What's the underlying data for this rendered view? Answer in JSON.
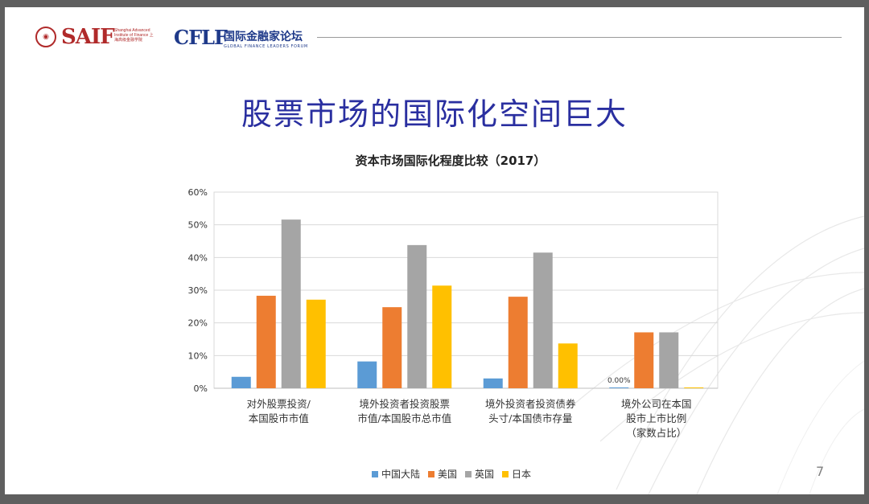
{
  "header": {
    "saif_logo": "SAIF",
    "saif_subtitle": "Shanghai Advanced Institute of Finance 上海高级金融学院",
    "cflf_logo": "CFLF",
    "cflf_name": "国际金融家论坛",
    "cflf_en": "GLOBAL FINANCE LEADERS FORUM"
  },
  "slide_title": "股票市场的国际化空间巨大",
  "page_number": "7",
  "colors": {
    "title": "#2a2fa0",
    "中国大陆": "#5b9bd5",
    "美国": "#ed7d31",
    "英国": "#a5a5a5",
    "日本": "#ffc000"
  },
  "chart_data": {
    "type": "bar",
    "title": "资本市场国际化程度比较（2017）",
    "categories": [
      [
        "对外股票投资/",
        "本国股市市值"
      ],
      [
        "境外投资者投资股票",
        "市值/本国股市总市值"
      ],
      [
        "境外投资者投资债券",
        "头寸/本国债市存量"
      ],
      [
        "境外公司在本国",
        "股市上市比例",
        "（家数占比）"
      ]
    ],
    "series": [
      {
        "name": "中国大陆",
        "color": "#5b9bd5",
        "values": [
          0.035,
          0.082,
          0.03,
          0.0
        ]
      },
      {
        "name": "美国",
        "color": "#ed7d31",
        "values": [
          0.283,
          0.248,
          0.28,
          0.171
        ]
      },
      {
        "name": "英国",
        "color": "#a5a5a5",
        "values": [
          0.516,
          0.438,
          0.415,
          0.171
        ]
      },
      {
        "name": "日本",
        "color": "#ffc000",
        "values": [
          0.271,
          0.314,
          0.137,
          0.0
        ]
      }
    ],
    "ylim": [
      0,
      0.6
    ],
    "yticks": [
      "0%",
      "10%",
      "20%",
      "30%",
      "40%",
      "50%",
      "60%"
    ],
    "data_labels": [
      {
        "text": "0.00%",
        "category": 3,
        "series": "中国大陆"
      }
    ],
    "grid": true,
    "legend_position": "bottom"
  }
}
